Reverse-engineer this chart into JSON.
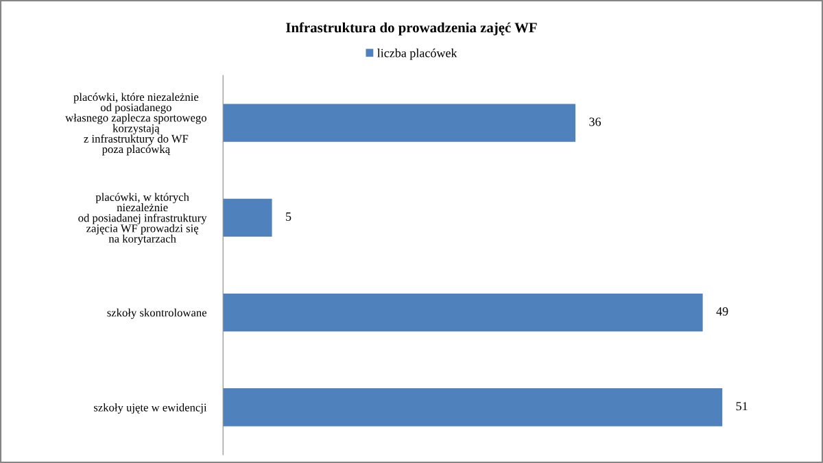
{
  "chart_data": {
    "type": "bar",
    "orientation": "horizontal",
    "title": "Infrastruktura do prowadzenia zajęć WF",
    "categories": [
      "placówki, które niezależnie\nod posiadanego\nwłasnego zaplecza sportowego\nkorzystają\nz infrastruktury do WF\npoza placówką",
      "placówki, w których\nniezależnie\nod posiadanej infrastruktury\nzajęcia WF prowadzi się\nna korytarzach",
      "szkoły skontrolowane",
      "szkoły ujęte w ewidencji"
    ],
    "series": [
      {
        "name": "liczba placówek",
        "color": "#4f81bd",
        "values": [
          36,
          5,
          49,
          51
        ]
      }
    ],
    "data_labels": true,
    "legend": "top",
    "tick_labels": "y"
  }
}
